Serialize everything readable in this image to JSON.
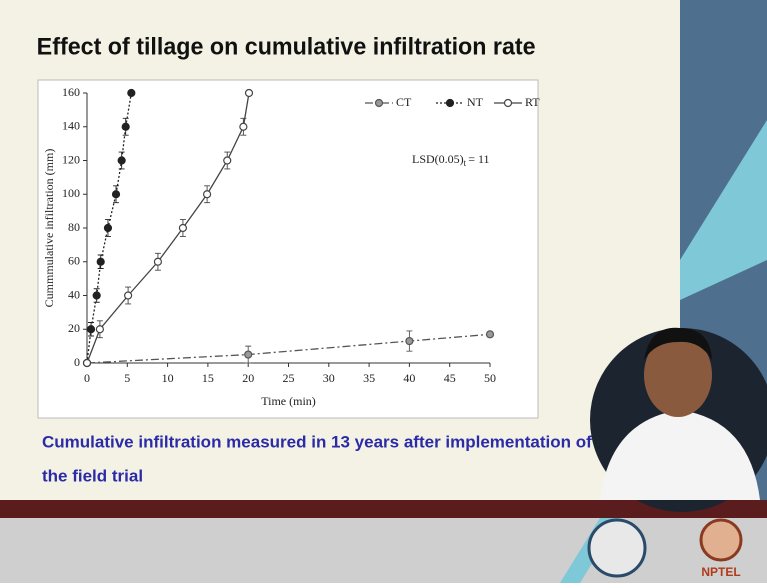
{
  "slide": {
    "title": "Effect of tillage on cumulative infiltration rate",
    "caption": [
      "Cumulative infiltration measured in 13 years after implementation of",
      "the field trial"
    ],
    "logo_text": "NPTEL"
  },
  "chart_data": {
    "type": "line",
    "x_label": "Time (min)",
    "y_label": "Cummmulative infiltration (mm)",
    "xlim": [
      0,
      50
    ],
    "xticks": [
      0,
      5,
      10,
      15,
      20,
      25,
      30,
      35,
      40,
      45,
      50
    ],
    "ylim": [
      0,
      160
    ],
    "yticks": [
      0,
      20,
      40,
      60,
      80,
      100,
      120,
      140,
      160
    ],
    "annotation": [
      "LSD(0.05)",
      "t",
      "= 11"
    ],
    "legend": "top-right",
    "series": [
      {
        "name": "CT",
        "color": "#555555",
        "dash": "8 3 2 3",
        "marker": "gray",
        "x": [
          0,
          20,
          40,
          50
        ],
        "values": [
          0,
          5,
          13,
          17
        ],
        "errors": [
          0,
          5,
          6,
          0
        ]
      },
      {
        "name": "NT",
        "color": "#222222",
        "dash": "2 2",
        "marker": "filled",
        "x": [
          0,
          0.5,
          1.2,
          1.7,
          2.6,
          3.6,
          4.3,
          4.8,
          5.5
        ],
        "values": [
          0,
          20,
          40,
          60,
          80,
          100,
          120,
          140,
          160
        ],
        "errors": [
          0,
          4,
          4,
          4,
          5,
          5,
          5,
          5,
          0
        ]
      },
      {
        "name": "RT",
        "color": "#444444",
        "dash": "",
        "marker": "open",
        "x": [
          0,
          1.6,
          5.1,
          8.8,
          11.9,
          14.9,
          17.4,
          19.4,
          20.1
        ],
        "values": [
          0,
          20,
          40,
          60,
          80,
          100,
          120,
          140,
          160
        ],
        "errors": [
          0,
          5,
          5,
          5,
          5,
          5,
          5,
          5,
          0
        ]
      }
    ]
  }
}
